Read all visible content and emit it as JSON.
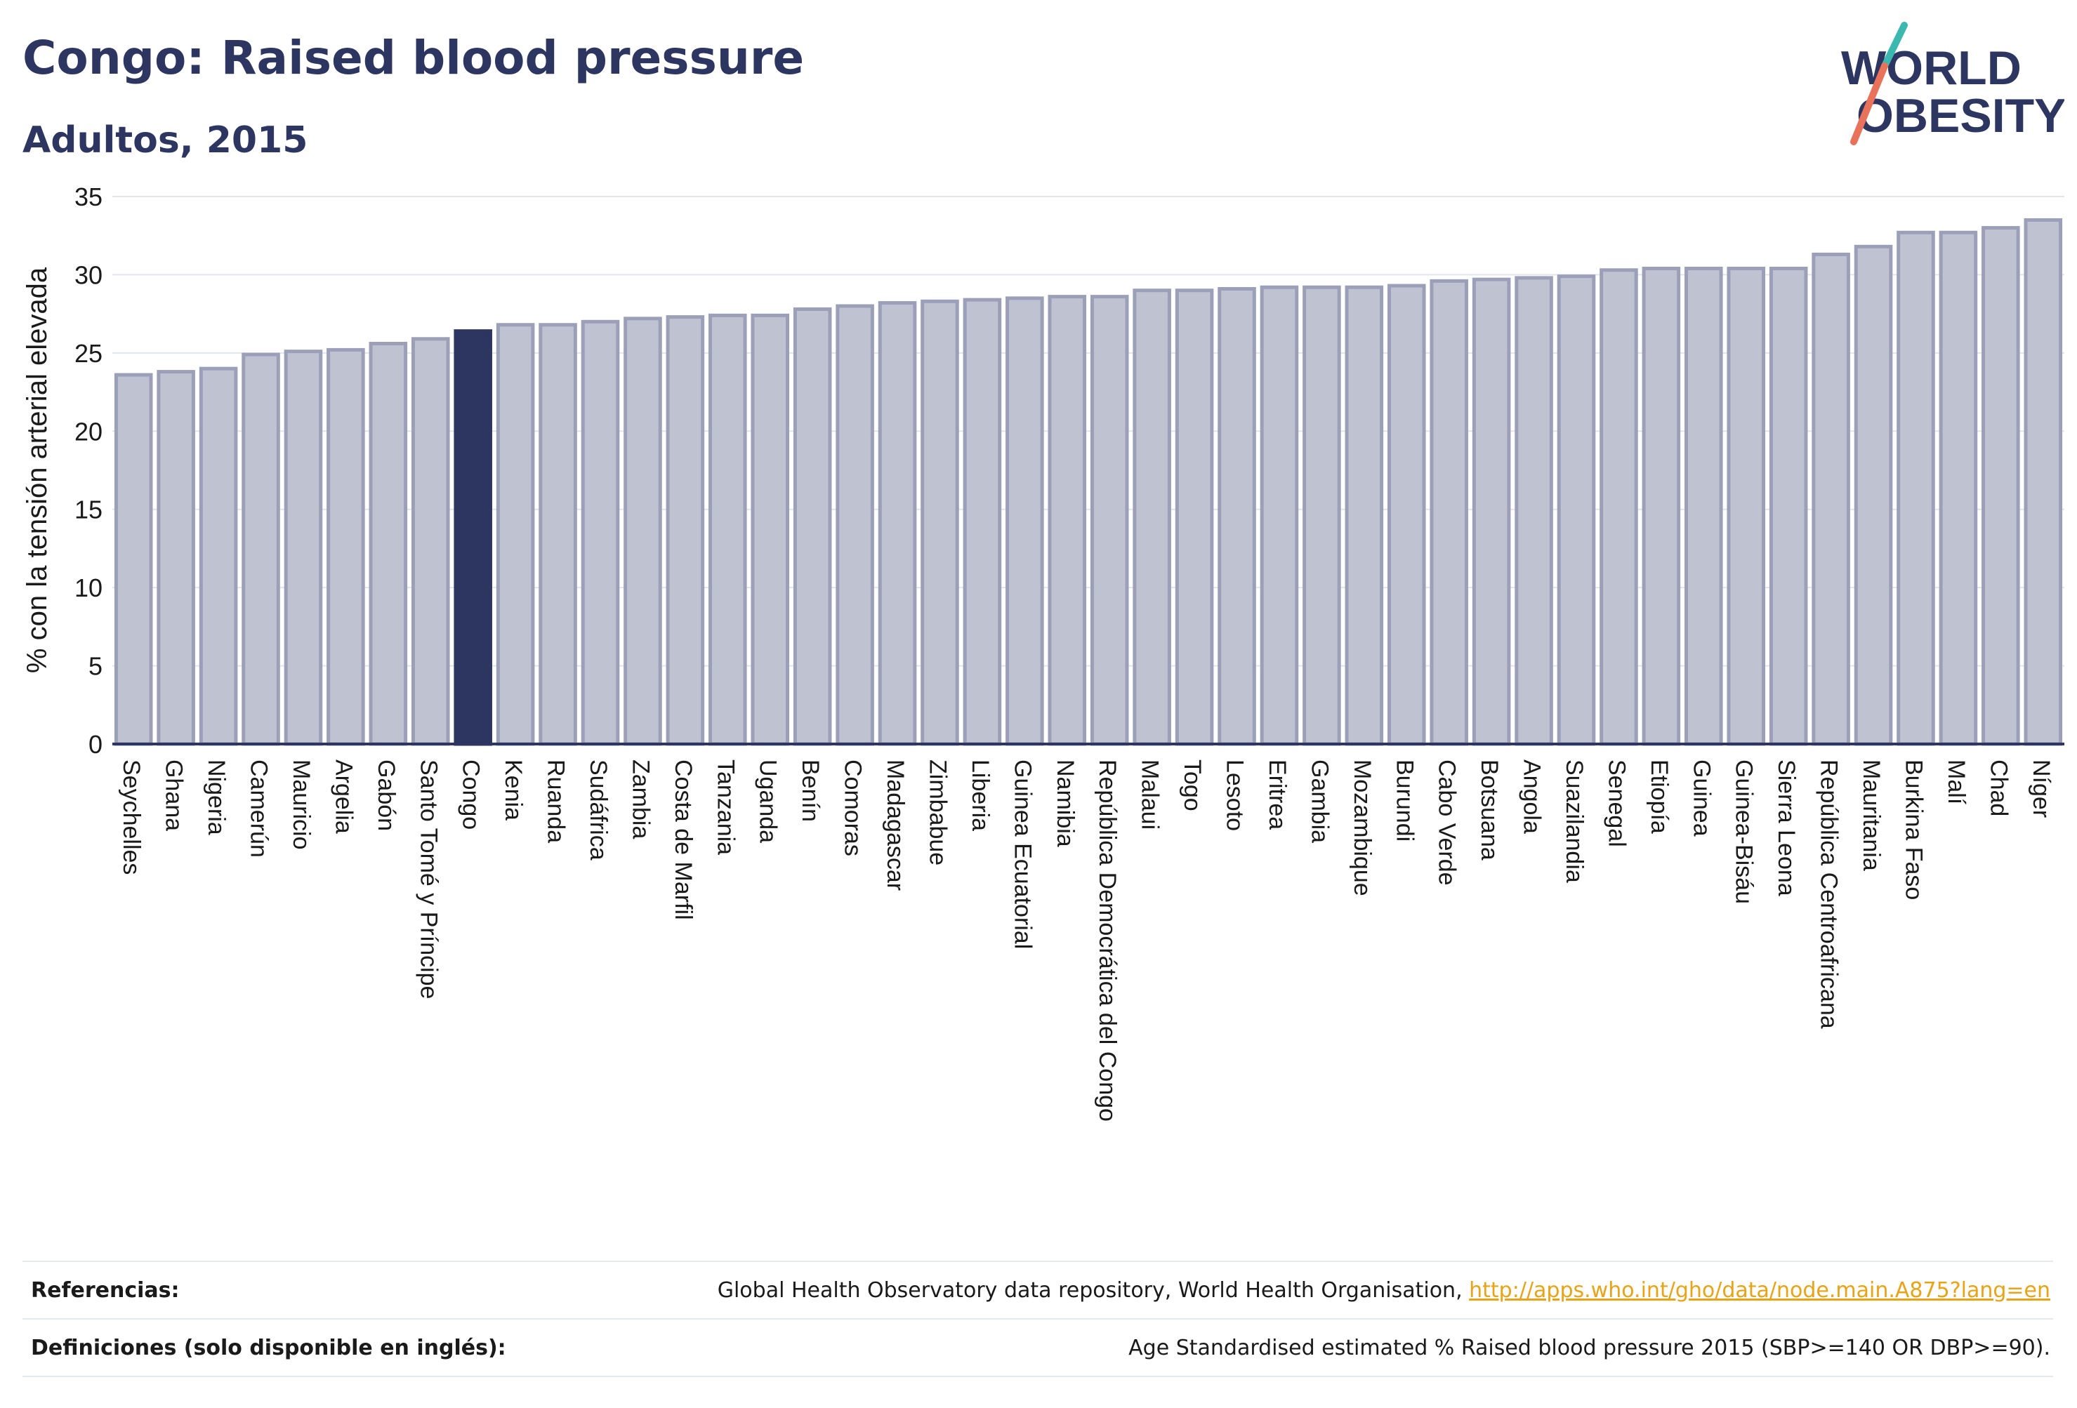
{
  "header": {
    "title": "Congo: Raised blood pressure",
    "subtitle": "Adultos, 2015"
  },
  "logo": {
    "line1": "WORLD",
    "line2": "OBESITY",
    "colors": {
      "text": "#2d3561",
      "slash_teal": "#3bb8b0",
      "slash_coral": "#e8735a"
    }
  },
  "colors": {
    "bar_default": "#bfc3d1",
    "bar_default_stroke": "#9ba0b8",
    "bar_highlight": "#2d3561",
    "axis": "#2d3561",
    "grid": "#e3e5ee",
    "text": "#1a1a1a"
  },
  "chart_data": {
    "type": "bar",
    "ylabel": "% con la tensión arterial elevada",
    "ylim": [
      0,
      35
    ],
    "yticks": [
      0,
      5,
      10,
      15,
      20,
      25,
      30,
      35
    ],
    "grid": true,
    "highlight": "Congo",
    "categories": [
      "Seychelles",
      "Ghana",
      "Nigeria",
      "Camerún",
      "Mauricio",
      "Argelia",
      "Gabón",
      "Santo Tomé y Príncipe",
      "Congo",
      "Kenia",
      "Ruanda",
      "Sudáfrica",
      "Zambia",
      "Costa de Marfil",
      "Tanzania",
      "Uganda",
      "Benín",
      "Comoras",
      "Madagascar",
      "Zimbabue",
      "Liberia",
      "Guinea Ecuatorial",
      "Namibia",
      "República Democrática del Congo",
      "Malaui",
      "Togo",
      "Lesoto",
      "Eritrea",
      "Gambia",
      "Mozambique",
      "Burundi",
      "Cabo Verde",
      "Botsuana",
      "Angola",
      "Suazilandia",
      "Senegal",
      "Etiopía",
      "Guinea",
      "Guinea-Bisáu",
      "Sierra Leona",
      "República Centroafricana",
      "Mauritania",
      "Burkina Faso",
      "Malí",
      "Chad",
      "Níger"
    ],
    "values": [
      23.6,
      23.8,
      24.0,
      24.9,
      25.1,
      25.2,
      25.6,
      25.9,
      26.4,
      26.8,
      26.8,
      27.0,
      27.2,
      27.3,
      27.4,
      27.4,
      27.8,
      28.0,
      28.2,
      28.3,
      28.4,
      28.5,
      28.6,
      28.6,
      29.0,
      29.0,
      29.1,
      29.2,
      29.2,
      29.2,
      29.3,
      29.6,
      29.7,
      29.8,
      29.9,
      30.3,
      30.4,
      30.4,
      30.4,
      30.4,
      31.3,
      31.8,
      32.7,
      32.7,
      33.0,
      33.5
    ]
  },
  "footer": {
    "references_label": "Referencias:",
    "references_text": "Global Health Observatory data repository, World Health Organisation, ",
    "references_link": "http://apps.who.int/gho/data/node.main.A875?lang=en",
    "definitions_label": "Definiciones (solo disponible en inglés):",
    "definitions_text": "Age Standardised estimated % Raised blood pressure 2015 (SBP>=140 OR DBP>=90)."
  }
}
